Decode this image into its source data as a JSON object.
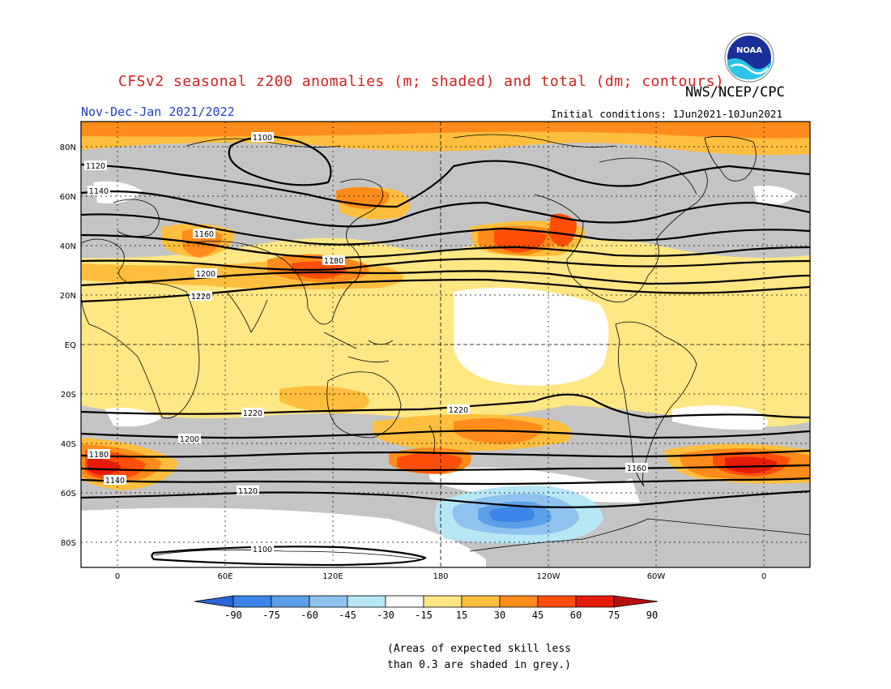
{
  "title": "CFSv2 seasonal z200 anomalies (m; shaded) and total (dm; contours)",
  "period": "Nov-Dec-Jan 2021/2022",
  "agency": "NWS/NCEP/CPC",
  "initial_conditions": "Initial conditions: 1Jun2021-10Jun2021",
  "logo_text": "NOAA",
  "footnote": {
    "line1": "(Areas of expected skill less",
    "line2": "than 0.3 are shaded in grey.)"
  },
  "map": {
    "lat_labels": [
      "80N",
      "60N",
      "40N",
      "20N",
      "EQ",
      "20S",
      "40S",
      "60S",
      "80S"
    ],
    "lon_labels": [
      "0",
      "60E",
      "120E",
      "180",
      "120W",
      "60W",
      "0"
    ],
    "contour_labels": [
      "1100",
      "1120",
      "1140",
      "1160",
      "1180",
      "1200",
      "1220",
      "1220",
      "1220",
      "1200",
      "1180",
      "1160",
      "1140",
      "1120",
      "1100"
    ]
  },
  "colorbar": {
    "tick_labels": [
      "-90",
      "-75",
      "-60",
      "-45",
      "-30",
      "-15",
      "15",
      "30",
      "45",
      "60",
      "75",
      "90"
    ],
    "colors": [
      "#2b64d6",
      "#3d85e8",
      "#5b9fe8",
      "#8fc2ef",
      "#b7e6f5",
      "#ffffff",
      "#ffe784",
      "#ffbe3d",
      "#ff8c1a",
      "#ff4e0a",
      "#e61c0a",
      "#b50f0f"
    ],
    "grey": "#c4c4c4"
  }
}
